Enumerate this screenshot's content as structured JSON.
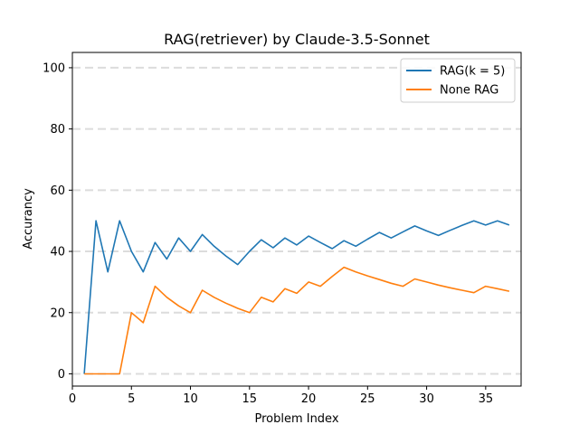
{
  "chart_data": {
    "type": "line",
    "title": "RAG(retriever) by Claude-3.5-Sonnet",
    "xlabel": "Problem Index",
    "ylabel": "Accurancy",
    "xlim": [
      0,
      38
    ],
    "ylim": [
      -4,
      105
    ],
    "xticks": [
      0,
      5,
      10,
      15,
      20,
      25,
      30,
      35
    ],
    "yticks": [
      0,
      20,
      40,
      60,
      80,
      100
    ],
    "grid": "horizontal dashed",
    "legend": "top-right",
    "x": [
      1,
      2,
      3,
      4,
      5,
      6,
      7,
      8,
      9,
      10,
      11,
      12,
      13,
      14,
      15,
      16,
      17,
      18,
      19,
      20,
      21,
      22,
      23,
      24,
      25,
      26,
      27,
      28,
      29,
      30,
      31,
      32,
      33,
      34,
      35,
      36,
      37
    ],
    "series": [
      {
        "name": "RAG(k = 5)",
        "color": "#1f77b4",
        "values": [
          0,
          50,
          33.3,
          50,
          40,
          33.3,
          42.9,
          37.5,
          44.4,
          40,
          45.5,
          41.7,
          38.5,
          35.7,
          40,
          43.8,
          41.2,
          44.4,
          42.1,
          45,
          42.9,
          40.9,
          43.5,
          41.7,
          44,
          46.2,
          44.4,
          46.4,
          48.3,
          46.7,
          45.2,
          46.9,
          48.5,
          50,
          48.6,
          50,
          48.6
        ]
      },
      {
        "name": "None RAG",
        "color": "#ff7f0e",
        "values": [
          0,
          0,
          0,
          0,
          20,
          16.7,
          28.6,
          25,
          22.2,
          20,
          27.3,
          25,
          23.1,
          21.4,
          20,
          25,
          23.5,
          27.8,
          26.3,
          30,
          28.6,
          31.8,
          34.8,
          33.3,
          32,
          30.8,
          29.6,
          28.6,
          31,
          30,
          29,
          28.1,
          27.3,
          26.5,
          28.6,
          27.8,
          27
        ]
      }
    ]
  }
}
